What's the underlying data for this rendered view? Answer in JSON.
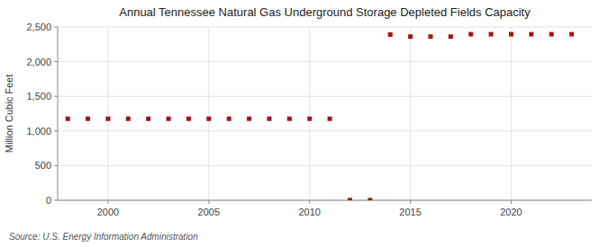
{
  "chart_data": {
    "type": "scatter",
    "title": "Annual Tennessee Natural Gas Underground Storage Depleted Fields Capacity",
    "ylabel": "Million Cubic Feet",
    "annotations": [
      "Source: U.S. Energy Information Administration"
    ],
    "color": "#aa1111",
    "marker": "square",
    "grid": true,
    "xlim": [
      1997.5,
      2024
    ],
    "ylim": [
      0,
      2500
    ],
    "xticks": [
      2000,
      2005,
      2010,
      2015,
      2020
    ],
    "yticks": [
      0,
      500,
      {
        "value": 1000,
        "label": "1,000"
      },
      {
        "value": 1500,
        "label": "1,500"
      },
      {
        "value": 2000,
        "label": "2,000"
      },
      {
        "value": 2500,
        "label": "2,500"
      }
    ],
    "x": [
      1998,
      1999,
      2000,
      2001,
      2002,
      2003,
      2004,
      2005,
      2006,
      2007,
      2008,
      2009,
      2010,
      2011,
      2012,
      2013,
      2014,
      2015,
      2016,
      2017,
      2018,
      2019,
      2020,
      2021,
      2022,
      2023
    ],
    "values": [
      1176,
      1176,
      1176,
      1176,
      1176,
      1176,
      1176,
      1176,
      1176,
      1176,
      1176,
      1176,
      1176,
      1176,
      2,
      2,
      2390,
      2361,
      2361,
      2361,
      2395,
      2395,
      2395,
      2395,
      2395,
      2395
    ]
  }
}
